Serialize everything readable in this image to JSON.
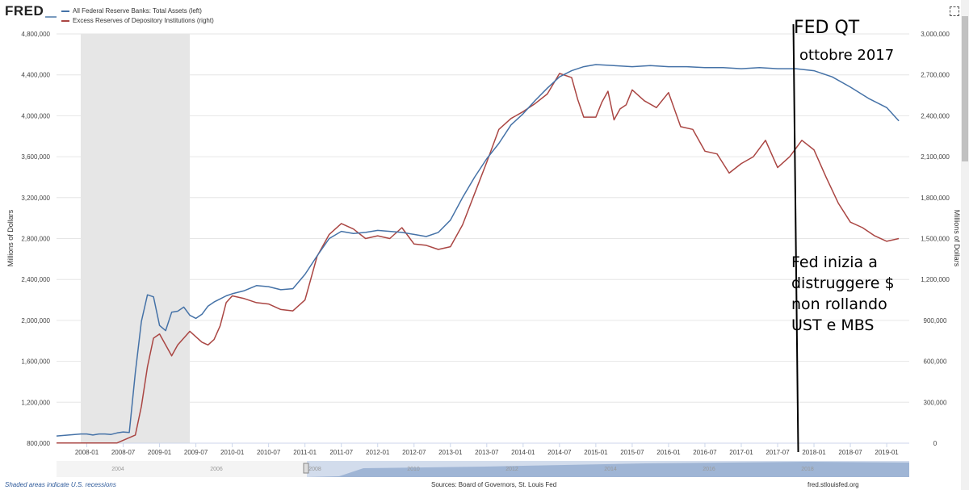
{
  "header": {
    "logo": "FRED",
    "legend": [
      {
        "label": "All Federal Reserve Banks: Total Assets (left)",
        "color": "#4572a7"
      },
      {
        "label": "Excess Reserves of Depository Institutions (right)",
        "color": "#aa4643"
      }
    ]
  },
  "annotations": {
    "title": "FED QT",
    "subtitle": "ottobre 2017",
    "note_lines": [
      "Fed inizia a",
      "distruggere $",
      "non rollando",
      "UST e MBS"
    ]
  },
  "footer": {
    "recession_note": "Shaded areas indicate U.S. recessions",
    "sources": "Sources: Board of Governors, St. Louis Fed",
    "site": "fred.stlouisfed.org"
  },
  "navigator": {
    "labels": [
      "2004",
      "2006",
      "2008",
      "2010",
      "2012",
      "2014",
      "2016",
      "2018"
    ]
  },
  "chart_data": {
    "type": "line",
    "ylabel_left": "Millions of Dollars",
    "ylabel_right": "Millions of Dollars",
    "x_tick_labels": [
      "2008-01",
      "2008-07",
      "2009-01",
      "2009-07",
      "2010-01",
      "2010-07",
      "2011-01",
      "2011-07",
      "2012-01",
      "2012-07",
      "2013-01",
      "2013-07",
      "2014-01",
      "2014-07",
      "2015-01",
      "2015-07",
      "2016-01",
      "2016-07",
      "2017-01",
      "2017-07",
      "2018-01",
      "2018-07",
      "2019-01"
    ],
    "ylim_left": [
      800000,
      4800000
    ],
    "ylim_right": [
      0,
      3000000
    ],
    "yticks_left": [
      800000,
      1200000,
      1600000,
      2000000,
      2400000,
      2800000,
      3200000,
      3600000,
      4000000,
      4400000,
      4800000
    ],
    "yticks_right": [
      0,
      300000,
      600000,
      900000,
      1200000,
      1500000,
      1800000,
      2100000,
      2400000,
      2700000,
      3000000
    ],
    "ytick_labels_left": [
      "800,000",
      "1,200,000",
      "1,600,000",
      "2,000,000",
      "2,400,000",
      "2,800,000",
      "3,200,000",
      "3,600,000",
      "4,000,000",
      "4,400,000",
      "4,800,000"
    ],
    "ytick_labels_right": [
      "0",
      "300,000",
      "600,000",
      "900,000",
      "1,200,000",
      "1,500,000",
      "1,800,000",
      "2,100,000",
      "2,400,000",
      "2,700,000",
      "3,000,000"
    ],
    "recession": [
      "2007-12",
      "2009-06"
    ],
    "qt_marker": "2017-10",
    "series": [
      {
        "name": "All Federal Reserve Banks: Total Assets (left)",
        "axis": "left",
        "color": "#4572a7",
        "x": [
          "2007-08",
          "2007-09",
          "2007-10",
          "2007-11",
          "2007-12",
          "2008-01",
          "2008-02",
          "2008-03",
          "2008-04",
          "2008-05",
          "2008-06",
          "2008-07",
          "2008-08",
          "2008-09",
          "2008-10",
          "2008-11",
          "2008-12",
          "2009-01",
          "2009-02",
          "2009-03",
          "2009-04",
          "2009-05",
          "2009-06",
          "2009-07",
          "2009-08",
          "2009-09",
          "2009-10",
          "2009-11",
          "2009-12",
          "2010-01",
          "2010-03",
          "2010-05",
          "2010-07",
          "2010-09",
          "2010-11",
          "2011-01",
          "2011-03",
          "2011-05",
          "2011-07",
          "2011-09",
          "2011-11",
          "2012-01",
          "2012-03",
          "2012-05",
          "2012-07",
          "2012-09",
          "2012-11",
          "2013-01",
          "2013-03",
          "2013-05",
          "2013-07",
          "2013-09",
          "2013-11",
          "2014-01",
          "2014-03",
          "2014-05",
          "2014-07",
          "2014-09",
          "2014-11",
          "2015-01",
          "2015-04",
          "2015-07",
          "2015-10",
          "2016-01",
          "2016-04",
          "2016-07",
          "2016-10",
          "2017-01",
          "2017-04",
          "2017-07",
          "2017-10",
          "2018-01",
          "2018-04",
          "2018-07",
          "2018-10",
          "2019-01",
          "2019-03"
        ],
        "values": [
          870000,
          875000,
          880000,
          885000,
          890000,
          890000,
          880000,
          890000,
          890000,
          885000,
          900000,
          910000,
          905000,
          1490000,
          1990000,
          2250000,
          2230000,
          1950000,
          1900000,
          2080000,
          2090000,
          2130000,
          2050000,
          2020000,
          2060000,
          2140000,
          2180000,
          2210000,
          2240000,
          2260000,
          2290000,
          2340000,
          2330000,
          2300000,
          2310000,
          2450000,
          2630000,
          2800000,
          2870000,
          2850000,
          2860000,
          2880000,
          2870000,
          2860000,
          2840000,
          2820000,
          2860000,
          2980000,
          3200000,
          3400000,
          3580000,
          3730000,
          3910000,
          4020000,
          4150000,
          4270000,
          4380000,
          4440000,
          4480000,
          4500000,
          4490000,
          4480000,
          4490000,
          4480000,
          4480000,
          4470000,
          4470000,
          4460000,
          4470000,
          4460000,
          4460000,
          4440000,
          4380000,
          4280000,
          4170000,
          4080000,
          3950000
        ]
      },
      {
        "name": "Excess Reserves of Depository Institutions (right)",
        "axis": "right",
        "color": "#aa4643",
        "x": [
          "2007-08",
          "2008-01",
          "2008-06",
          "2008-09",
          "2008-10",
          "2008-11",
          "2008-12",
          "2009-01",
          "2009-02",
          "2009-03",
          "2009-04",
          "2009-06",
          "2009-08",
          "2009-09",
          "2009-10",
          "2009-11",
          "2009-12",
          "2010-01",
          "2010-03",
          "2010-05",
          "2010-07",
          "2010-09",
          "2010-11",
          "2011-01",
          "2011-03",
          "2011-05",
          "2011-07",
          "2011-09",
          "2011-11",
          "2012-01",
          "2012-03",
          "2012-05",
          "2012-07",
          "2012-09",
          "2012-11",
          "2013-01",
          "2013-03",
          "2013-05",
          "2013-07",
          "2013-09",
          "2013-11",
          "2014-01",
          "2014-03",
          "2014-05",
          "2014-07",
          "2014-09",
          "2014-10",
          "2014-11",
          "2015-01",
          "2015-02",
          "2015-03",
          "2015-04",
          "2015-05",
          "2015-06",
          "2015-07",
          "2015-09",
          "2015-11",
          "2016-01",
          "2016-03",
          "2016-05",
          "2016-07",
          "2016-09",
          "2016-11",
          "2017-01",
          "2017-03",
          "2017-05",
          "2017-07",
          "2017-09",
          "2017-11",
          "2018-01",
          "2018-03",
          "2018-05",
          "2018-07",
          "2018-09",
          "2018-11",
          "2019-01",
          "2019-03"
        ],
        "values": [
          2000,
          2000,
          2000,
          60000,
          270000,
          560000,
          770000,
          800000,
          720000,
          640000,
          720000,
          820000,
          740000,
          720000,
          760000,
          860000,
          1030000,
          1080000,
          1060000,
          1030000,
          1020000,
          980000,
          970000,
          1050000,
          1370000,
          1530000,
          1610000,
          1570000,
          1500000,
          1520000,
          1500000,
          1580000,
          1460000,
          1450000,
          1420000,
          1440000,
          1600000,
          1830000,
          2060000,
          2300000,
          2380000,
          2430000,
          2490000,
          2560000,
          2710000,
          2680000,
          2520000,
          2390000,
          2390000,
          2500000,
          2580000,
          2370000,
          2450000,
          2480000,
          2590000,
          2510000,
          2460000,
          2570000,
          2320000,
          2300000,
          2140000,
          2120000,
          1980000,
          2050000,
          2100000,
          2220000,
          2020000,
          2100000,
          2220000,
          2150000,
          1950000,
          1760000,
          1620000,
          1580000,
          1520000,
          1480000,
          1500000
        ]
      }
    ]
  }
}
